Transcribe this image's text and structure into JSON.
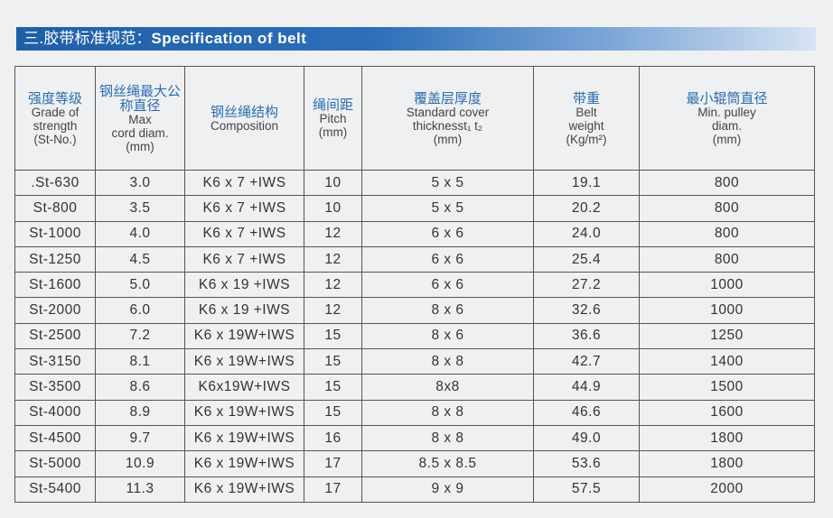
{
  "header": {
    "title_cn": "三.胶带标准规范：",
    "title_en": "Specification of belt"
  },
  "columns": [
    {
      "zh": "强度等级",
      "en": [
        "Grade of",
        "strength",
        "(St-No.)"
      ]
    },
    {
      "zh": "钢丝绳最大公称直径",
      "en": [
        "Max",
        "cord diam.",
        "(mm)"
      ]
    },
    {
      "zh": "钢丝绳结构",
      "en": [
        "Composition"
      ]
    },
    {
      "zh": "绳间距",
      "en": [
        "Pitch",
        "(mm)"
      ]
    },
    {
      "zh": "覆盖层厚度",
      "en": [
        "Standard cover",
        "thicknesst₁ t₂",
        "(mm)"
      ]
    },
    {
      "zh": "带重",
      "en": [
        "Belt",
        "weight",
        "(Kg/m²)"
      ]
    },
    {
      "zh": "最小辊筒直径",
      "en": [
        "Min. pulley",
        "diam.",
        "(mm)"
      ]
    }
  ],
  "rows": [
    [
      ".St-630",
      "3.0",
      "K6 x 7 +IWS",
      "10",
      "5 x 5",
      "19.1",
      "800"
    ],
    [
      "St-800",
      "3.5",
      "K6 x 7 +IWS",
      "10",
      "5 x 5",
      "20.2",
      "800"
    ],
    [
      "St-1000",
      "4.0",
      "K6 x 7 +IWS",
      "12",
      "6 x 6",
      "24.0",
      "800"
    ],
    [
      "St-1250",
      "4.5",
      "K6 x 7 +IWS",
      "12",
      "6 x 6",
      "25.4",
      "800"
    ],
    [
      "St-1600",
      "5.0",
      "K6 x 19 +IWS",
      "12",
      "6 x 6",
      "27.2",
      "1000"
    ],
    [
      "St-2000",
      "6.0",
      "K6 x 19 +IWS",
      "12",
      "8 x 6",
      "32.6",
      "1000"
    ],
    [
      "St-2500",
      "7.2",
      "K6 x 19W+IWS",
      "15",
      "8 x 6",
      "36.6",
      "1250"
    ],
    [
      "St-3150",
      "8.1",
      "K6 x 19W+IWS",
      "15",
      "8 x 8",
      "42.7",
      "1400"
    ],
    [
      "St-3500",
      "8.6",
      "K6x19W+IWS",
      "15",
      "8x8",
      "44.9",
      "1500"
    ],
    [
      "St-4000",
      "8.9",
      "K6 x 19W+IWS",
      "15",
      "8 x 8",
      "46.6",
      "1600"
    ],
    [
      "St-4500",
      "9.7",
      "K6 x 19W+IWS",
      "16",
      "8 x 8",
      "49.0",
      "1800"
    ],
    [
      "St-5000",
      "10.9",
      "K6 x 19W+IWS",
      "17",
      "8.5 x 8.5",
      "53.6",
      "1800"
    ],
    [
      "St-5400",
      "11.3",
      "K6 x 19W+IWS",
      "17",
      "9 x 9",
      "57.5",
      "2000"
    ]
  ]
}
